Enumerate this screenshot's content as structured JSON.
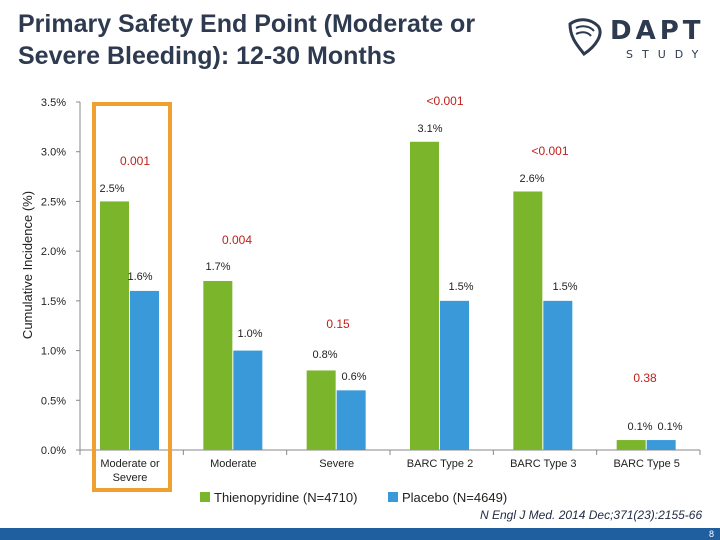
{
  "slide": {
    "title": "Primary Safety End Point (Moderate or Severe Bleeding): 12-30 Months",
    "logo_text": "DAPT",
    "logo_subtext": "STUDY",
    "citation": "N Engl J Med. 2014 Dec;371(23):2155-66",
    "page_number": "8"
  },
  "colors": {
    "thienopyridine": "#7ab52b",
    "placebo": "#3a9ad9",
    "highlight_box": "#f0a030",
    "p_value": "#c0201a",
    "axis_text": "#222222"
  },
  "chart_data": {
    "type": "bar",
    "ylabel": "Cumulative Incidence (%)",
    "ylim": [
      0,
      3.5
    ],
    "y_ticks": [
      "0.0%",
      "0.5%",
      "1.0%",
      "1.5%",
      "2.0%",
      "2.5%",
      "3.0%",
      "3.5%"
    ],
    "categories": [
      "Moderate or Severe",
      "Moderate",
      "Severe",
      "BARC Type 2",
      "BARC Type 3",
      "BARC Type 5"
    ],
    "series": [
      {
        "name": "Thienopyridine (N=4710)",
        "values": [
          2.5,
          1.7,
          0.8,
          3.1,
          2.6,
          0.1
        ],
        "labels": [
          "2.5%",
          "1.7%",
          "0.8%",
          "3.1%",
          "2.6%",
          "0.1%"
        ]
      },
      {
        "name": "Placebo (N=4649)",
        "values": [
          1.6,
          1.0,
          0.6,
          1.5,
          1.5,
          0.1
        ],
        "labels": [
          "1.6%",
          "1.0%",
          "0.6%",
          "1.5%",
          "1.5%",
          "0.1%"
        ]
      }
    ],
    "p_values": [
      "0.001",
      "0.004",
      "0.15",
      "<0.001",
      "<0.001",
      "0.38"
    ],
    "legend_position": "bottom",
    "highlighted_category": "Moderate or Severe"
  }
}
